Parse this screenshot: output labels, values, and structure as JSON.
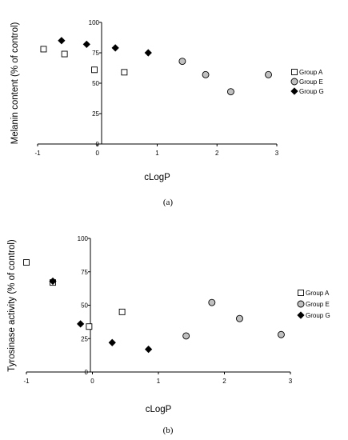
{
  "chart_data": [
    {
      "type": "scatter",
      "panel_label": "(a)",
      "xlabel": "cLogP",
      "ylabel": "Melanin content (% of control)",
      "xlim": [
        -1,
        3
      ],
      "ylim": [
        0,
        100
      ],
      "xticks": [
        -1,
        0,
        1,
        2,
        3
      ],
      "yticks": [
        0,
        25,
        50,
        75,
        100
      ],
      "xtick_labels": [
        "-1",
        "0",
        "1",
        "2",
        "3"
      ],
      "ytick_labels": [
        "0",
        "25",
        "50",
        "75",
        "100"
      ],
      "grid": false,
      "legend": "right",
      "series": [
        {
          "name": "Group A",
          "marker": "square",
          "fill": "#ffffff",
          "stroke": "#000000",
          "points": [
            {
              "x": -0.9,
              "y": 78
            },
            {
              "x": -0.55,
              "y": 74
            },
            {
              "x": -0.05,
              "y": 61
            },
            {
              "x": 0.45,
              "y": 59
            }
          ]
        },
        {
          "name": "Group E",
          "marker": "circle",
          "fill": "#c0c0c0",
          "stroke": "#000000",
          "points": [
            {
              "x": 1.42,
              "y": 68
            },
            {
              "x": 1.81,
              "y": 57
            },
            {
              "x": 2.23,
              "y": 43
            },
            {
              "x": 2.86,
              "y": 57
            }
          ]
        },
        {
          "name": "Group G",
          "marker": "diamond",
          "fill": "#000000",
          "stroke": "#000000",
          "points": [
            {
              "x": -0.6,
              "y": 85
            },
            {
              "x": -0.18,
              "y": 82
            },
            {
              "x": 0.3,
              "y": 79
            },
            {
              "x": 0.85,
              "y": 75
            }
          ]
        }
      ]
    },
    {
      "type": "scatter",
      "panel_label": "(b)",
      "xlabel": "cLogP",
      "ylabel": "Tyrosinase activity (% of control)",
      "xlim": [
        -1,
        3
      ],
      "ylim": [
        0,
        100
      ],
      "xticks": [
        -1,
        0,
        1,
        2,
        3
      ],
      "yticks": [
        0,
        25,
        50,
        75,
        100
      ],
      "xtick_labels": [
        "-1",
        "0",
        "1",
        "2",
        "3"
      ],
      "ytick_labels": [
        "0",
        "25",
        "50",
        "75",
        "100"
      ],
      "grid": false,
      "legend": "right",
      "series": [
        {
          "name": "Group A",
          "marker": "square",
          "fill": "#ffffff",
          "stroke": "#000000",
          "points": [
            {
              "x": -1.0,
              "y": 82
            },
            {
              "x": -0.6,
              "y": 67
            },
            {
              "x": -0.05,
              "y": 34
            },
            {
              "x": 0.45,
              "y": 45
            }
          ]
        },
        {
          "name": "Group E",
          "marker": "circle",
          "fill": "#c0c0c0",
          "stroke": "#000000",
          "points": [
            {
              "x": 1.42,
              "y": 27
            },
            {
              "x": 1.81,
              "y": 52
            },
            {
              "x": 2.23,
              "y": 40
            },
            {
              "x": 2.86,
              "y": 28
            }
          ]
        },
        {
          "name": "Group G",
          "marker": "diamond",
          "fill": "#000000",
          "stroke": "#000000",
          "points": [
            {
              "x": -0.6,
              "y": 68
            },
            {
              "x": -0.18,
              "y": 36
            },
            {
              "x": 0.3,
              "y": 22
            },
            {
              "x": 0.85,
              "y": 17
            }
          ]
        }
      ]
    }
  ]
}
